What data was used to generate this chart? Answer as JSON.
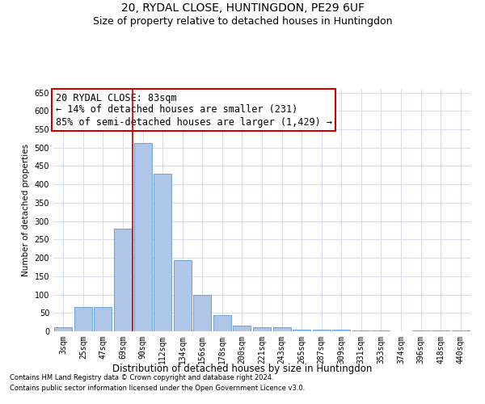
{
  "title1": "20, RYDAL CLOSE, HUNTINGDON, PE29 6UF",
  "title2": "Size of property relative to detached houses in Huntingdon",
  "xlabel": "Distribution of detached houses by size in Huntingdon",
  "ylabel": "Number of detached properties",
  "categories": [
    "3sqm",
    "25sqm",
    "47sqm",
    "69sqm",
    "90sqm",
    "112sqm",
    "134sqm",
    "156sqm",
    "178sqm",
    "200sqm",
    "221sqm",
    "243sqm",
    "265sqm",
    "287sqm",
    "309sqm",
    "331sqm",
    "353sqm",
    "374sqm",
    "396sqm",
    "418sqm",
    "440sqm"
  ],
  "values": [
    10,
    65,
    65,
    280,
    513,
    430,
    193,
    100,
    45,
    15,
    10,
    10,
    5,
    5,
    5,
    3,
    3,
    0,
    3,
    3,
    3
  ],
  "bar_color": "#aec6e8",
  "bar_edge_color": "#5b9bd5",
  "vline_x": 4.0,
  "vline_color": "#cc0000",
  "annotation_text": "20 RYDAL CLOSE: 83sqm\n← 14% of detached houses are smaller (231)\n85% of semi-detached houses are larger (1,429) →",
  "annotation_box_color": "#ffffff",
  "annotation_box_edge_color": "#cc0000",
  "ylim": [
    0,
    660
  ],
  "yticks": [
    0,
    50,
    100,
    150,
    200,
    250,
    300,
    350,
    400,
    450,
    500,
    550,
    600,
    650
  ],
  "footer1": "Contains HM Land Registry data © Crown copyright and database right 2024.",
  "footer2": "Contains public sector information licensed under the Open Government Licence v3.0.",
  "bg_color": "#ffffff",
  "grid_color": "#d0d8e8",
  "title1_fontsize": 10,
  "title2_fontsize": 9,
  "xlabel_fontsize": 8.5,
  "ylabel_fontsize": 7.5,
  "tick_fontsize": 7,
  "annotation_fontsize": 8.5
}
